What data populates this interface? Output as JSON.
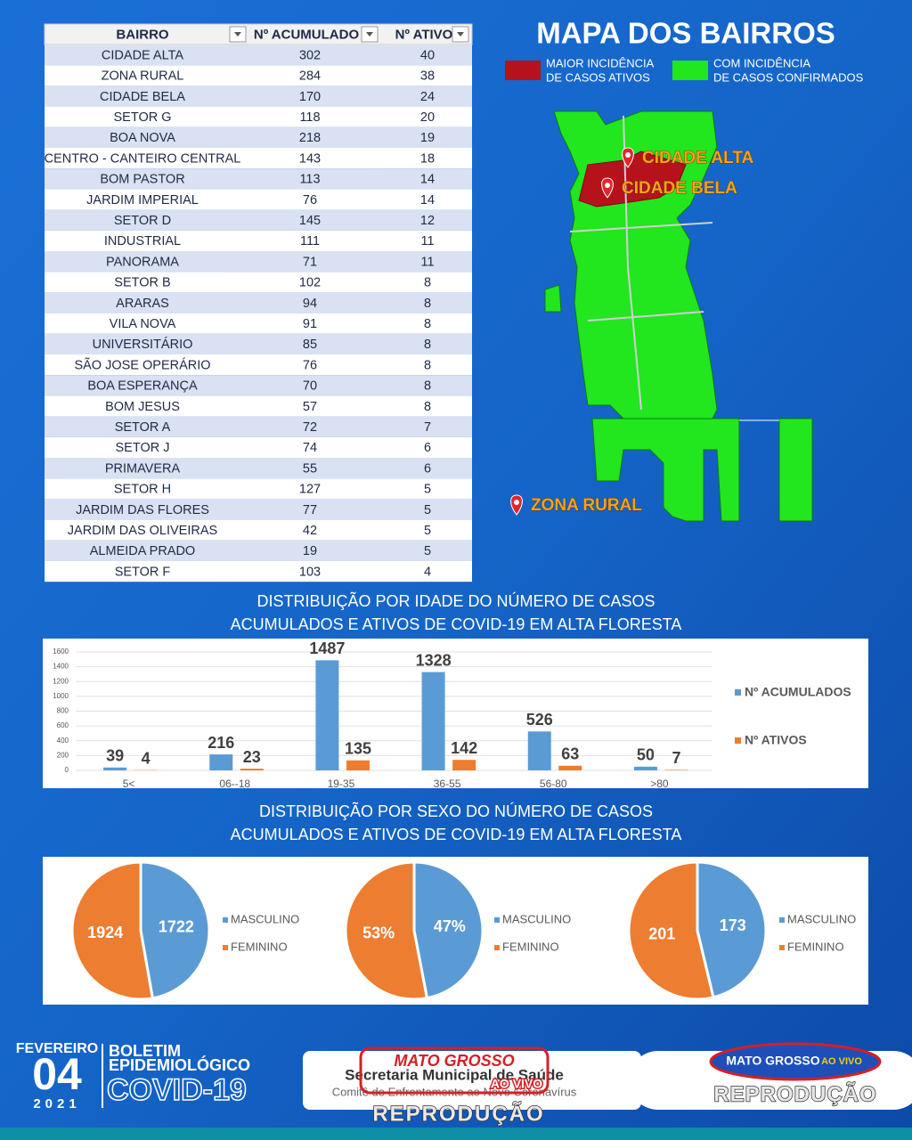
{
  "table": {
    "headers": [
      "BAIRRO",
      "Nº ACUMULADO",
      "Nº ATIVO"
    ],
    "rows": [
      [
        "CIDADE ALTA",
        "302",
        "40"
      ],
      [
        "ZONA RURAL",
        "284",
        "38"
      ],
      [
        "CIDADE BELA",
        "170",
        "24"
      ],
      [
        "SETOR G",
        "118",
        "20"
      ],
      [
        "BOA NOVA",
        "218",
        "19"
      ],
      [
        "CENTRO - CANTEIRO CENTRAL",
        "143",
        "18"
      ],
      [
        "BOM PASTOR",
        "113",
        "14"
      ],
      [
        "JARDIM IMPERIAL",
        "76",
        "14"
      ],
      [
        "SETOR D",
        "145",
        "12"
      ],
      [
        "INDUSTRIAL",
        "111",
        "11"
      ],
      [
        "PANORAMA",
        "71",
        "11"
      ],
      [
        "SETOR B",
        "102",
        "8"
      ],
      [
        "ARARAS",
        "94",
        "8"
      ],
      [
        "VILA NOVA",
        "91",
        "8"
      ],
      [
        "UNIVERSITÁRIO",
        "85",
        "8"
      ],
      [
        "SÃO JOSE OPERÁRIO",
        "76",
        "8"
      ],
      [
        "BOA ESPERANÇA",
        "70",
        "8"
      ],
      [
        "BOM JESUS",
        "57",
        "8"
      ],
      [
        "SETOR A",
        "72",
        "7"
      ],
      [
        "SETOR J",
        "74",
        "6"
      ],
      [
        "PRIMAVERA",
        "55",
        "6"
      ],
      [
        "SETOR H",
        "127",
        "5"
      ],
      [
        "JARDIM DAS FLORES",
        "77",
        "5"
      ],
      [
        "JARDIM DAS OLIVEIRAS",
        "42",
        "5"
      ],
      [
        "ALMEIDA PRADO",
        "19",
        "5"
      ],
      [
        "SETOR F",
        "103",
        "4"
      ]
    ]
  },
  "map": {
    "title": "MAPA DOS BAIRROS",
    "legend": [
      {
        "lines": [
          "MAIOR INCIDÊNCIA",
          "DE CASOS ATIVOS"
        ],
        "color": "#b5121b"
      },
      {
        "lines": [
          "COM INCIDÊNCIA",
          "DE CASOS CONFIRMADOS"
        ],
        "color": "#22e61e"
      }
    ],
    "markers": [
      "CIDADE ALTA",
      "CIDADE BELA",
      "ZONA RURAL"
    ]
  },
  "chart_data": [
    {
      "type": "bar",
      "title_lines": [
        "DISTRIBUIÇÃO POR IDADE DO NÚMERO DE CASOS",
        "ACUMULADOS E ATIVOS DE COVID-19 EM ALTA FLORESTA"
      ],
      "categories": [
        "5<",
        "06--18",
        "19-35",
        "36-55",
        "56-80",
        ">80"
      ],
      "series": [
        {
          "name": "Nº ACUMULADOS",
          "color": "#5b9bd5",
          "values": [
            39,
            216,
            1487,
            1328,
            526,
            50
          ]
        },
        {
          "name": "Nº ATIVOS",
          "color": "#ed7d31",
          "values": [
            4,
            23,
            135,
            142,
            63,
            7
          ]
        }
      ],
      "ylim": [
        0,
        1600
      ],
      "yticks": [
        0,
        200,
        400,
        600,
        800,
        1000,
        1200,
        1400,
        1600
      ],
      "grid": true,
      "legend": "right"
    },
    {
      "type": "pie",
      "title_lines": [
        "DISTRIBUIÇÃO POR SEXO DO NÚMERO DE CASOS",
        "ACUMULADOS E ATIVOS DE COVID-19 EM ALTA FLORESTA"
      ],
      "categories": [
        "MASCULINO",
        "FEMININO"
      ],
      "values": [
        1722,
        1924
      ],
      "colors": [
        "#5b9bd5",
        "#ed7d31"
      ]
    },
    {
      "type": "pie",
      "categories": [
        "MASCULINO",
        "FEMININO"
      ],
      "values": [
        47,
        53
      ],
      "value_labels": [
        "47%",
        "53%"
      ],
      "colors": [
        "#5b9bd5",
        "#ed7d31"
      ]
    },
    {
      "type": "pie",
      "categories": [
        "MASCULINO",
        "FEMININO"
      ],
      "values": [
        173,
        201
      ],
      "colors": [
        "#5b9bd5",
        "#ed7d31"
      ]
    }
  ],
  "footer": {
    "month": "FEVEREIRO",
    "day": "04",
    "year": "2021",
    "bulletin": [
      "BOLETIM",
      "EPIDEMIOLÓGICO",
      "COVID-19"
    ],
    "secretariat": "Secretaria Municipal de Saúde",
    "committee": "Comitê de Enfrentamento ao Novo Coronavírus",
    "watermark": [
      "MATO GROSSO",
      "AO VIVO",
      "REPRODUÇÃO"
    ]
  }
}
